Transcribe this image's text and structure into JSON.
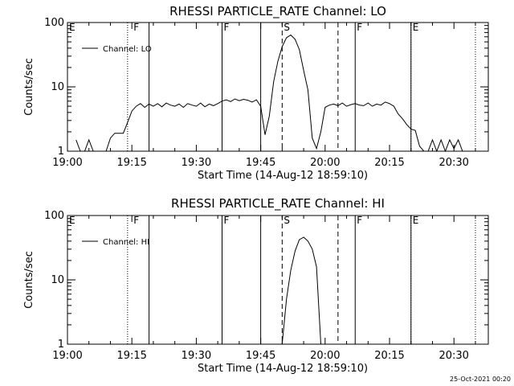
{
  "chart_data": [
    {
      "type": "line",
      "title": "RHESSI PARTICLE_RATE Channel: LO",
      "xlabel": "Start Time (14-Aug-12 18:59:10)",
      "ylabel": "Counts/sec",
      "yscale": "log",
      "ylim": [
        1,
        100
      ],
      "xlim": [
        "19:00",
        "20:38"
      ],
      "x_ticks": [
        "19:00",
        "19:15",
        "19:30",
        "19:45",
        "20:00",
        "20:15",
        "20:30"
      ],
      "y_ticks": [
        "1",
        "10",
        "100"
      ],
      "legend": {
        "entries": [
          "Channel: LO"
        ],
        "placement": "top-left"
      },
      "region_labels": [
        {
          "label": "E",
          "time": "19:00"
        },
        {
          "label": "F",
          "time": "19:15"
        },
        {
          "label": "F",
          "time": "19:36"
        },
        {
          "label": "S",
          "time": "19:50"
        },
        {
          "label": "F",
          "time": "20:07"
        },
        {
          "label": "E",
          "time": "20:20"
        }
      ],
      "solid_markers": [
        "19:19",
        "19:36",
        "19:45",
        "20:07",
        "20:20"
      ],
      "dashed_markers": [
        "19:50",
        "20:03"
      ],
      "dotted_markers": [
        "19:14",
        "20:20",
        "20:35"
      ],
      "series": [
        {
          "name": "Channel: LO",
          "x": [
            "19:02",
            "19:03",
            "19:04",
            "19:05",
            "19:06",
            "19:07",
            "19:08",
            "19:09",
            "19:10",
            "19:11",
            "19:12",
            "19:13",
            "19:14",
            "19:15",
            "19:16",
            "19:17",
            "19:18",
            "19:19",
            "19:20",
            "19:21",
            "19:22",
            "19:23",
            "19:24",
            "19:25",
            "19:26",
            "19:27",
            "19:28",
            "19:29",
            "19:30",
            "19:31",
            "19:32",
            "19:33",
            "19:34",
            "19:35",
            "19:36",
            "19:37",
            "19:38",
            "19:39",
            "19:40",
            "19:41",
            "19:42",
            "19:43",
            "19:44",
            "19:45",
            "19:46",
            "19:47",
            "19:48",
            "19:49",
            "19:50",
            "19:51",
            "19:52",
            "19:53",
            "19:54",
            "19:55",
            "19:56",
            "19:57",
            "19:58",
            "19:59",
            "20:00",
            "20:01",
            "20:02",
            "20:03",
            "20:04",
            "20:05",
            "20:06",
            "20:07",
            "20:08",
            "20:09",
            "20:10",
            "20:11",
            "20:12",
            "20:13",
            "20:14",
            "20:15",
            "20:16",
            "20:17",
            "20:18",
            "20:19",
            "20:20",
            "20:21",
            "20:22",
            "20:23",
            "20:24",
            "20:25",
            "20:26",
            "20:27",
            "20:28",
            "20:29",
            "20:30",
            "20:31",
            "20:32",
            "20:33",
            "20:34"
          ],
          "values": [
            1.5,
            1,
            1,
            1.5,
            1,
            1,
            1,
            1,
            1.6,
            1.9,
            1.9,
            1.9,
            2.8,
            4.2,
            5,
            5.5,
            4.8,
            5.4,
            5,
            5.5,
            4.9,
            5.6,
            5.2,
            5,
            5.4,
            4.8,
            5.5,
            5.2,
            5,
            5.6,
            4.9,
            5.4,
            5.1,
            5.5,
            6,
            6.3,
            5.9,
            6.5,
            6.1,
            6.4,
            6.2,
            5.8,
            6.3,
            5,
            1.8,
            3.5,
            12,
            25,
            42,
            58,
            64,
            55,
            38,
            18,
            9,
            1.6,
            1.1,
            2,
            4.8,
            5.2,
            5.4,
            5.1,
            5.6,
            5,
            5.3,
            5.5,
            5.2,
            5.1,
            5.6,
            5,
            5.4,
            5.2,
            5.8,
            5.5,
            5,
            3.8,
            3.2,
            2.6,
            2.2,
            2.1,
            1.2,
            1,
            1,
            1.5,
            1,
            1.5,
            1,
            1.5,
            1.1,
            1.5,
            1,
            1,
            1
          ]
        }
      ]
    },
    {
      "type": "line",
      "title": "RHESSI PARTICLE_RATE Channel: HI",
      "xlabel": "Start Time (14-Aug-12 18:59:10)",
      "ylabel": "Counts/sec",
      "yscale": "log",
      "ylim": [
        1,
        100
      ],
      "xlim": [
        "19:00",
        "20:38"
      ],
      "x_ticks": [
        "19:00",
        "19:15",
        "19:30",
        "19:45",
        "20:00",
        "20:15",
        "20:30"
      ],
      "y_ticks": [
        "1",
        "10",
        "100"
      ],
      "legend": {
        "entries": [
          "Channel: HI"
        ],
        "placement": "top-left"
      },
      "region_labels": [
        {
          "label": "E",
          "time": "19:00"
        },
        {
          "label": "F",
          "time": "19:15"
        },
        {
          "label": "F",
          "time": "19:36"
        },
        {
          "label": "S",
          "time": "19:50"
        },
        {
          "label": "F",
          "time": "20:07"
        },
        {
          "label": "E",
          "time": "20:20"
        }
      ],
      "solid_markers": [
        "19:19",
        "19:36",
        "19:45",
        "20:07",
        "20:20"
      ],
      "dashed_markers": [
        "19:50",
        "20:03"
      ],
      "dotted_markers": [
        "19:14",
        "20:20",
        "20:35"
      ],
      "series": [
        {
          "name": "Channel: HI",
          "x": [
            "19:50",
            "19:51",
            "19:52",
            "19:53",
            "19:54",
            "19:55",
            "19:56",
            "19:57",
            "19:58",
            "19:59"
          ],
          "values": [
            1,
            5,
            14,
            28,
            42,
            46,
            40,
            30,
            16,
            1
          ]
        }
      ]
    }
  ],
  "timestamp": "25-Oct-2021 00:20"
}
